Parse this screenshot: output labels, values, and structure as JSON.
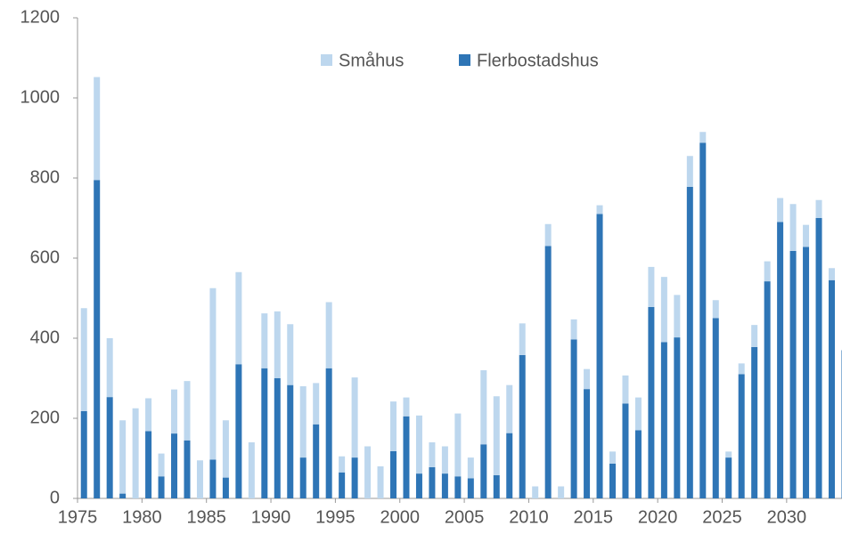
{
  "chart_data": {
    "type": "stacked_bar",
    "categories": [
      "1975",
      null,
      null,
      null,
      null,
      "1980",
      null,
      null,
      null,
      null,
      "1985",
      null,
      null,
      null,
      null,
      "1990",
      null,
      null,
      null,
      null,
      "1995",
      null,
      null,
      null,
      null,
      "2000",
      null,
      null,
      null,
      null,
      "2005",
      null,
      null,
      null,
      null,
      "2010",
      null,
      null,
      null,
      null,
      "2015",
      null,
      null,
      null,
      null,
      "2020",
      null,
      null,
      null,
      null,
      "2025",
      null,
      null,
      null,
      null,
      "2030",
      null,
      null,
      null,
      null
    ],
    "series": [
      {
        "name": "Flerbostadshus",
        "color": "#2e75b6",
        "values": [
          218,
          795,
          253,
          12,
          0,
          168,
          55,
          162,
          145,
          0,
          97,
          52,
          335,
          0,
          325,
          300,
          283,
          102,
          185,
          325,
          65,
          102,
          0,
          0,
          118,
          205,
          62,
          78,
          62,
          55,
          50,
          135,
          58,
          163,
          358,
          0,
          630,
          0,
          397,
          273,
          710,
          87,
          237,
          170,
          478,
          390,
          402,
          778,
          888,
          450,
          102,
          310,
          378,
          542,
          690,
          618,
          628,
          700,
          545,
          370
        ]
      },
      {
        "name": "Småhus",
        "color": "#bdd7ee",
        "values": [
          257,
          257,
          147,
          183,
          225,
          82,
          57,
          110,
          148,
          95,
          428,
          143,
          230,
          140,
          137,
          167,
          152,
          178,
          103,
          165,
          40,
          200,
          130,
          80,
          124,
          47,
          145,
          62,
          68,
          157,
          52,
          185,
          197,
          120,
          79,
          30,
          55,
          30,
          50,
          50,
          22,
          30,
          70,
          82,
          100,
          163,
          106,
          77,
          27,
          45,
          15,
          27,
          55,
          50,
          60,
          117,
          55,
          45,
          30,
          0
        ]
      }
    ],
    "ylim": [
      0,
      1200
    ],
    "yticks": [
      0,
      200,
      400,
      600,
      800,
      1000,
      1200
    ],
    "legend": "top"
  }
}
